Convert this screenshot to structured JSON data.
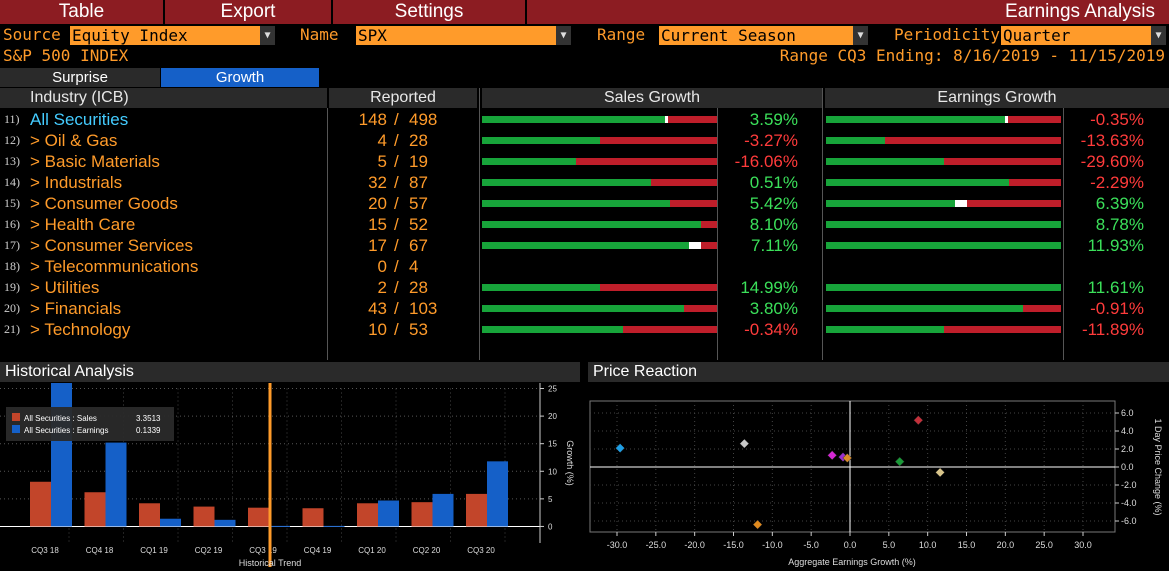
{
  "menu": {
    "table": "Table",
    "export": "Export",
    "settings": "Settings",
    "title": "Earnings Analysis"
  },
  "controls": {
    "source_label": "Source",
    "source_value": "Equity Index",
    "name_label": "Name",
    "name_value": "SPX",
    "range_label": "Range",
    "range_value": "Current Season",
    "periodicity_label": "Periodicity",
    "periodicity_value": "Quarter"
  },
  "index_name": "S&P 500 INDEX",
  "range_info": "Range CQ3 Ending: 8/16/2019 - 11/15/2019",
  "tabs": {
    "surprise": "Surprise",
    "growth": "Growth"
  },
  "table": {
    "headers": {
      "industry": "Industry (ICB)",
      "reported": "Reported",
      "sales": "Sales Growth",
      "earnings": "Earnings Growth"
    },
    "rows": [
      {
        "num": "11)",
        "name": "All Securities",
        "rep": "148",
        "tot": "498",
        "sales": "3.59%",
        "earn": "-0.35%",
        "sg": 0.78,
        "eg": 0.76,
        "s_pos": true,
        "e_pos": false
      },
      {
        "num": "12)",
        "name": "> Oil & Gas",
        "rep": "4",
        "tot": "28",
        "sales": "-3.27%",
        "earn": "-13.63%",
        "sg": 0.5,
        "eg": 0.25,
        "s_pos": false,
        "e_pos": false
      },
      {
        "num": "13)",
        "name": "> Basic Materials",
        "rep": "5",
        "tot": "19",
        "sales": "-16.06%",
        "earn": "-29.60%",
        "sg": 0.4,
        "eg": 0.5,
        "s_pos": false,
        "e_pos": false
      },
      {
        "num": "14)",
        "name": "> Industrials",
        "rep": "32",
        "tot": "87",
        "sales": "0.51%",
        "earn": "-2.29%",
        "sg": 0.72,
        "eg": 0.78,
        "s_pos": true,
        "e_pos": false
      },
      {
        "num": "15)",
        "name": "> Consumer Goods",
        "rep": "20",
        "tot": "57",
        "sales": "5.42%",
        "earn": "6.39%",
        "sg": 0.8,
        "eg": 0.55,
        "s_pos": true,
        "e_pos": true
      },
      {
        "num": "16)",
        "name": "> Health Care",
        "rep": "15",
        "tot": "52",
        "sales": "8.10%",
        "earn": "8.78%",
        "sg": 0.93,
        "eg": 1.0,
        "s_pos": true,
        "e_pos": true
      },
      {
        "num": "17)",
        "name": "> Consumer Services",
        "rep": "17",
        "tot": "67",
        "sales": "7.11%",
        "earn": "11.93%",
        "sg": 0.88,
        "eg": 1.0,
        "s_pos": true,
        "e_pos": true
      },
      {
        "num": "18)",
        "name": "> Telecommunications",
        "rep": "0",
        "tot": "4",
        "sales": "",
        "earn": "",
        "sg": null,
        "eg": null,
        "s_pos": true,
        "e_pos": true
      },
      {
        "num": "19)",
        "name": "> Utilities",
        "rep": "2",
        "tot": "28",
        "sales": "14.99%",
        "earn": "11.61%",
        "sg": 0.5,
        "eg": 1.0,
        "s_pos": true,
        "e_pos": true
      },
      {
        "num": "20)",
        "name": "> Financials",
        "rep": "43",
        "tot": "103",
        "sales": "3.80%",
        "earn": "-0.91%",
        "sg": 0.86,
        "eg": 0.84,
        "s_pos": true,
        "e_pos": false
      },
      {
        "num": "21)",
        "name": "> Technology",
        "rep": "10",
        "tot": "53",
        "sales": "-0.34%",
        "earn": "-11.89%",
        "sg": 0.6,
        "eg": 0.5,
        "s_pos": false,
        "e_pos": false
      }
    ]
  },
  "historical": {
    "title": "Historical Analysis",
    "legend": [
      {
        "label": "All Securities : Sales",
        "value": "3.3513",
        "color": "#c2452a"
      },
      {
        "label": "All Securities : Earnings",
        "value": "0.1339",
        "color": "#1560c8"
      }
    ],
    "x_label": "Historical Trend",
    "y_label": "Growth (%)",
    "chart_data": {
      "type": "bar",
      "categories": [
        "CQ3 18",
        "CQ4 18",
        "CQ1 19",
        "CQ2 19",
        "CQ3 19",
        "CQ4 19",
        "CQ1 20",
        "CQ2 20",
        "CQ3 20"
      ],
      "series": [
        {
          "name": "All Securities : Sales",
          "values": [
            8.1,
            6.2,
            4.2,
            3.6,
            3.4,
            3.3,
            4.2,
            4.4,
            5.9
          ]
        },
        {
          "name": "All Securities : Earnings",
          "values": [
            26,
            15.2,
            1.4,
            1.2,
            0.1,
            0.1,
            4.7,
            5.9,
            11.8
          ]
        }
      ],
      "yticks": [
        0,
        5,
        10,
        15,
        20,
        25
      ],
      "ylim": [
        -3,
        26
      ]
    }
  },
  "price": {
    "title": "Price Reaction",
    "x_label": "Aggregate Earnings Growth (%)",
    "y_label": "1 Day Price Change (%)",
    "chart_data": {
      "type": "scatter",
      "points": [
        {
          "x": -29.6,
          "y": 2.1,
          "color": "#1e9fe6"
        },
        {
          "x": -13.6,
          "y": 2.6,
          "color": "#c8c8c8"
        },
        {
          "x": -11.9,
          "y": -6.4,
          "color": "#e08a1e"
        },
        {
          "x": -2.3,
          "y": 1.3,
          "color": "#d427d4"
        },
        {
          "x": -0.9,
          "y": 1.1,
          "color": "#9a2fd0"
        },
        {
          "x": -0.35,
          "y": 1.0,
          "color": "#d98b2a"
        },
        {
          "x": 6.4,
          "y": 0.6,
          "color": "#1a9a38"
        },
        {
          "x": 8.8,
          "y": 5.2,
          "color": "#c2303a"
        },
        {
          "x": 11.6,
          "y": -0.6,
          "color": "#d8c48a"
        }
      ],
      "xticks": [
        "-30.0",
        "-25.0",
        "-20.0",
        "-15.0",
        "-10.0",
        "-5.0",
        "0.0",
        "5.0",
        "10.0",
        "15.0",
        "20.0",
        "25.0",
        "30.0"
      ],
      "yticks": [
        "6.0",
        "4.0",
        "2.0",
        "0.0",
        "-2.0",
        "-4.0",
        "-6.0"
      ]
    }
  }
}
